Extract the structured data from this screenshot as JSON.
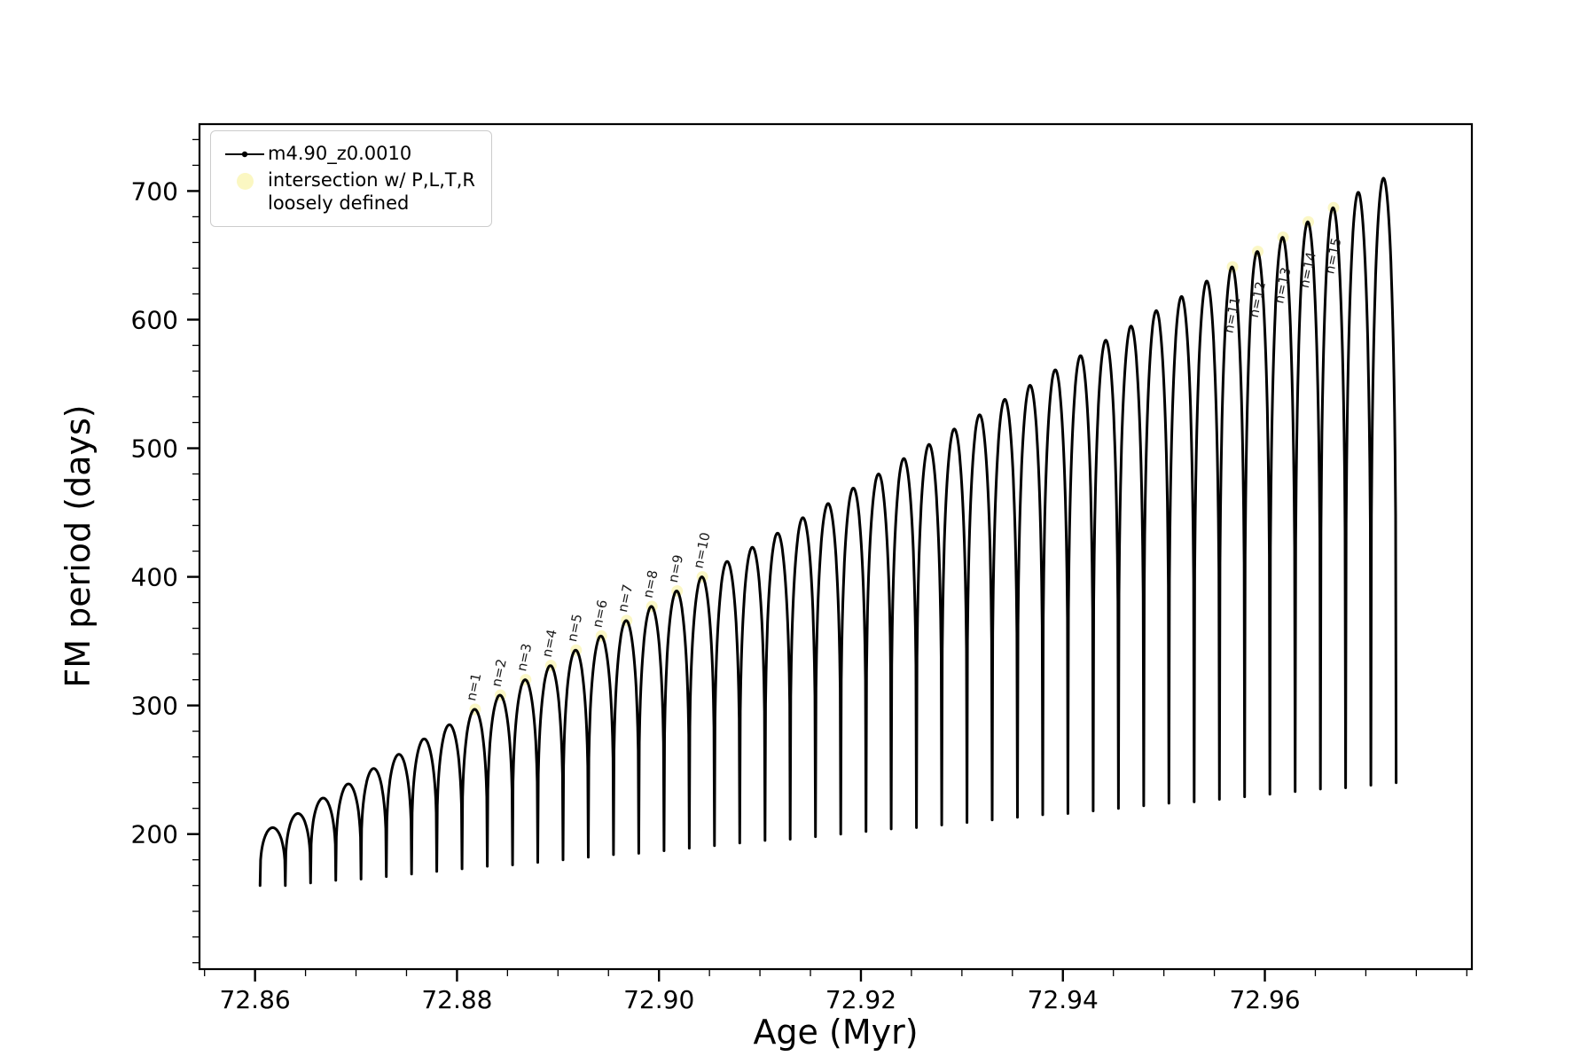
{
  "figure": {
    "background_color": "#ffffff",
    "plot_background_color": "#ffffff",
    "spine_color": "#000000",
    "tick_color": "#000000",
    "annotation_color": "#1a1a1a"
  },
  "legend": {
    "entries": [
      {
        "label": "m4.90_z0.0010",
        "marker": "line-with-dot",
        "marker_color": "#000000"
      },
      {
        "label_line1": "intersection w/ P,L,T,R",
        "label_line2": "loosely defined",
        "marker": "dot",
        "marker_color": "#fbf7c2"
      }
    ]
  },
  "chart_data": {
    "type": "line",
    "title": "",
    "xlabel": "Age (Myr)",
    "ylabel": "FM period (days)",
    "xlim": [
      72.8545,
      72.9805
    ],
    "ylim": [
      95,
      752
    ],
    "x_major_ticks": [
      72.86,
      72.88,
      72.9,
      72.92,
      72.94,
      72.96
    ],
    "x_tick_labels": [
      "72.86",
      "72.88",
      "72.90",
      "72.92",
      "72.94",
      "72.96"
    ],
    "x_minor_step": 0.005,
    "y_major_ticks": [
      200,
      300,
      400,
      500,
      600,
      700
    ],
    "y_tick_labels": [
      "200",
      "300",
      "400",
      "500",
      "600",
      "700"
    ],
    "y_minor_step": 20,
    "grid": false,
    "legend_position": "upper-left",
    "series": [
      {
        "name": "m4.90_z0.0010",
        "color": "#000000",
        "style": "line+point-markers"
      }
    ],
    "oscillations": {
      "description": "~45 thermal-pulse-like cycles: each cycle is a rounded dome rising from a narrow dip spike to a peak; peak envelope rises ~205 to ~710 days, dip envelope rises ~160 to ~240 days over ages 72.861-72.974 Myr",
      "x_start_first_cycle": 72.8605,
      "cycle_width_myr": 0.0025,
      "count": 45,
      "peak_values": [
        205,
        216,
        228,
        239,
        251,
        262,
        274,
        285,
        297,
        308,
        320,
        331,
        343,
        354,
        366,
        377,
        389,
        400,
        412,
        423,
        434,
        446,
        457,
        469,
        480,
        492,
        503,
        515,
        526,
        538,
        549,
        561,
        572,
        584,
        595,
        607,
        618,
        630,
        641,
        653,
        664,
        676,
        687,
        699,
        710
      ],
      "dip_values": [
        160,
        162,
        164,
        165,
        167,
        169,
        171,
        173,
        175,
        176,
        178,
        180,
        182,
        184,
        185,
        187,
        189,
        191,
        193,
        195,
        196,
        198,
        200,
        202,
        204,
        205,
        207,
        209,
        211,
        213,
        215,
        216,
        218,
        220,
        222,
        224,
        225,
        227,
        229,
        231,
        233,
        235,
        236,
        238,
        240
      ]
    },
    "intersection_points": [
      {
        "x": 72.8818,
        "y": 297
      },
      {
        "x": 72.8843,
        "y": 308
      },
      {
        "x": 72.8868,
        "y": 320
      },
      {
        "x": 72.8893,
        "y": 331
      },
      {
        "x": 72.8918,
        "y": 343
      },
      {
        "x": 72.8943,
        "y": 354
      },
      {
        "x": 72.8968,
        "y": 366
      },
      {
        "x": 72.8993,
        "y": 377
      },
      {
        "x": 72.9018,
        "y": 389
      },
      {
        "x": 72.9043,
        "y": 400
      },
      {
        "x": 72.9568,
        "y": 641
      },
      {
        "x": 72.9593,
        "y": 653
      },
      {
        "x": 72.9618,
        "y": 664
      },
      {
        "x": 72.9643,
        "y": 676
      },
      {
        "x": 72.9668,
        "y": 687
      }
    ],
    "annotations": [
      {
        "label": "n=1",
        "x": 72.8818,
        "y": 303
      },
      {
        "label": "n=2",
        "x": 72.8843,
        "y": 314
      },
      {
        "label": "n=3",
        "x": 72.8868,
        "y": 326
      },
      {
        "label": "n=4",
        "x": 72.8893,
        "y": 337
      },
      {
        "label": "n=5",
        "x": 72.8918,
        "y": 349
      },
      {
        "label": "n=6",
        "x": 72.8943,
        "y": 360
      },
      {
        "label": "n=7",
        "x": 72.8968,
        "y": 372
      },
      {
        "label": "n=8",
        "x": 72.8993,
        "y": 383
      },
      {
        "label": "n=9",
        "x": 72.9018,
        "y": 395
      },
      {
        "label": "n=10",
        "x": 72.9043,
        "y": 406
      },
      {
        "label": "n=11",
        "x": 72.9568,
        "y": 589
      },
      {
        "label": "n=12",
        "x": 72.9593,
        "y": 601
      },
      {
        "label": "n=13",
        "x": 72.9618,
        "y": 612
      },
      {
        "label": "n=14",
        "x": 72.9643,
        "y": 624
      },
      {
        "label": "n=15",
        "x": 72.9668,
        "y": 635
      }
    ]
  }
}
